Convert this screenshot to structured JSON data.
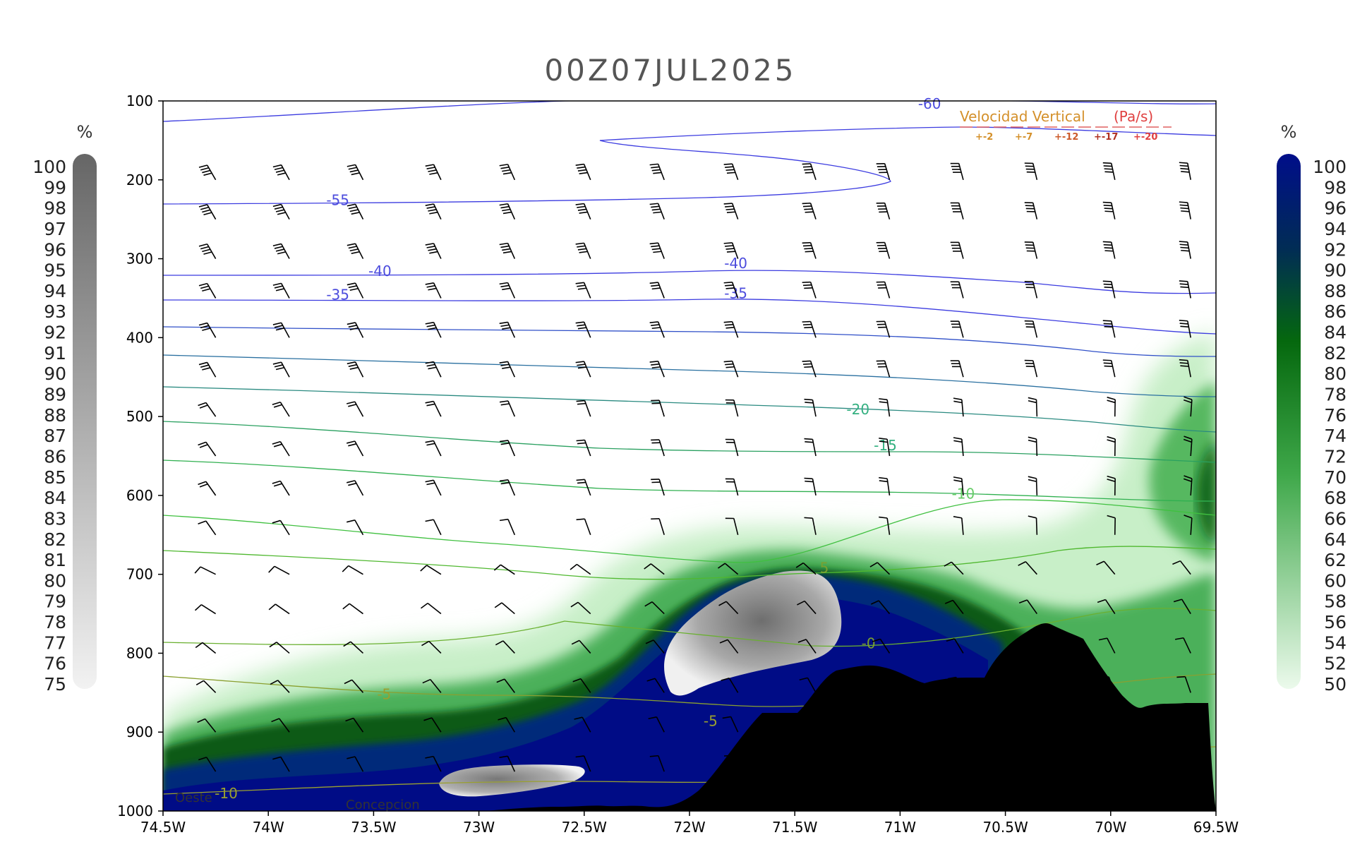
{
  "chart_data": {
    "type": "cross-section",
    "title": "00Z07JUL2025",
    "x_ticks": [
      "74.5W",
      "74W",
      "73.5W",
      "73W",
      "72.5W",
      "72W",
      "71.5W",
      "71W",
      "70.5W",
      "70W",
      "69.5W"
    ],
    "y_ticks": [
      "100",
      "200",
      "300",
      "400",
      "500",
      "600",
      "700",
      "800",
      "900",
      "1000"
    ],
    "xlim": [
      -74.5,
      -69.5
    ],
    "ylim": [
      100,
      1000
    ],
    "left_colorbar": {
      "unit": "%",
      "labels": [
        "100",
        "99",
        "98",
        "97",
        "96",
        "95",
        "94",
        "93",
        "92",
        "91",
        "90",
        "89",
        "88",
        "87",
        "86",
        "85",
        "84",
        "83",
        "82",
        "81",
        "80",
        "79",
        "78",
        "77",
        "76",
        "75"
      ]
    },
    "right_colorbar": {
      "unit": "%",
      "labels": [
        "100",
        "98",
        "96",
        "94",
        "92",
        "90",
        "88",
        "86",
        "84",
        "82",
        "80",
        "78",
        "76",
        "74",
        "72",
        "70",
        "68",
        "66",
        "64",
        "62",
        "60",
        "58",
        "56",
        "54",
        "52",
        "50"
      ]
    },
    "temperature_labels": [
      {
        "text": "-60",
        "lon": -70.86,
        "p": 110,
        "color": "#4c4cdd"
      },
      {
        "text": "-55",
        "lon": -73.67,
        "p": 232,
        "color": "#4c4cdd"
      },
      {
        "text": "-40",
        "lon": -73.47,
        "p": 322,
        "color": "#4c4cdd"
      },
      {
        "text": "-40",
        "lon": -71.78,
        "p": 312,
        "color": "#4c4cdd"
      },
      {
        "text": "-35",
        "lon": -73.67,
        "p": 352,
        "color": "#4c4cdd"
      },
      {
        "text": "-35",
        "lon": -71.78,
        "p": 350,
        "color": "#4c4cdd"
      },
      {
        "text": "-20",
        "lon": -71.2,
        "p": 497,
        "color": "#33b080"
      },
      {
        "text": "-15",
        "lon": -71.07,
        "p": 543,
        "color": "#33b080"
      },
      {
        "text": "-10",
        "lon": -70.7,
        "p": 604,
        "color": "#66cc66"
      },
      {
        "text": "5",
        "lon": -71.36,
        "p": 698,
        "color": "#7aa030"
      },
      {
        "text": "-0",
        "lon": -71.15,
        "p": 794,
        "color": "#7aa030"
      },
      {
        "text": "-5",
        "lon": -73.45,
        "p": 858,
        "color": "#9aa030"
      },
      {
        "text": "-5",
        "lon": -71.9,
        "p": 892,
        "color": "#9aa030"
      },
      {
        "text": "-10",
        "lon": -74.2,
        "p": 984,
        "color": "#9aa030"
      }
    ],
    "vv_legend": {
      "title": "Velocidad Vertical",
      "unit": "(Pa/s)",
      "items": [
        "+-2",
        "+-7",
        "+-12",
        "+-17",
        "+-20"
      ]
    },
    "places": [
      "Oeste",
      "Concepcion"
    ],
    "wind_barbs": {
      "lon": [
        -74.25,
        -73.9,
        -73.55,
        -73.18,
        -72.83,
        -72.47,
        -72.12,
        -71.77,
        -71.4,
        -71.05,
        -70.7,
        -70.35,
        -69.98,
        -69.62
      ],
      "levels": [
        100,
        200,
        250,
        300,
        350,
        400,
        450,
        500,
        550,
        600,
        650,
        700,
        750,
        800,
        850,
        900,
        950
      ]
    }
  }
}
